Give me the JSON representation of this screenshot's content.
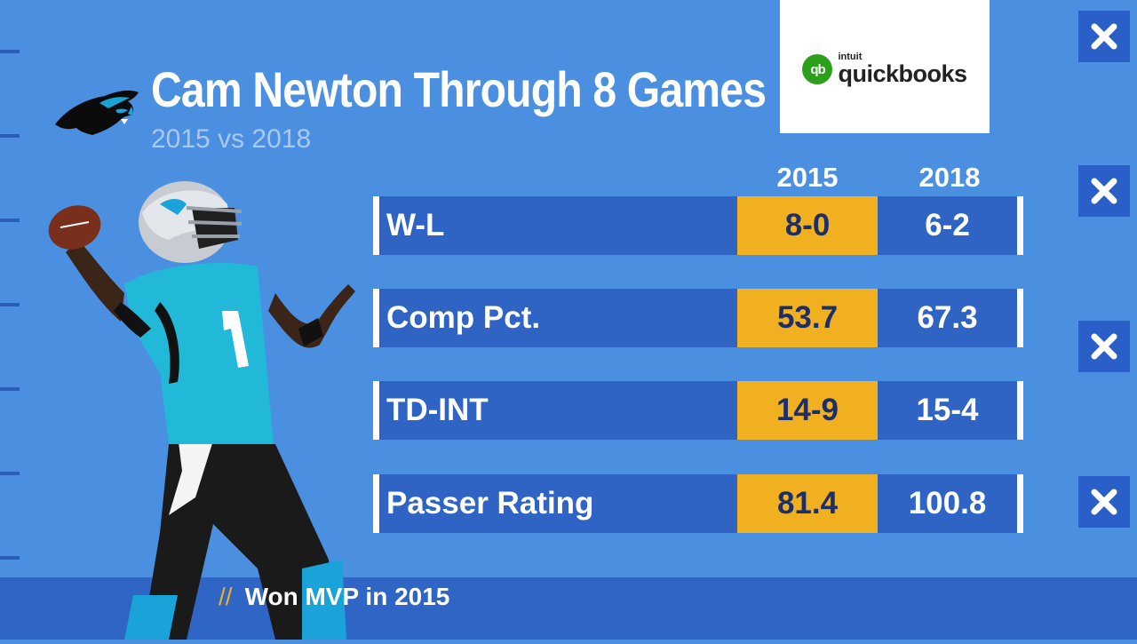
{
  "title": "Cam Newton Through 8 Games",
  "subtitle": "2015 vs 2018",
  "sponsor": {
    "brand_top": "intuit",
    "brand_name": "quickbooks",
    "mark": "qb"
  },
  "columns": [
    "2015",
    "2018"
  ],
  "rows": [
    {
      "label": "W-L",
      "v2015": "8-0",
      "v2018": "6-2"
    },
    {
      "label": "Comp Pct.",
      "v2015": "53.7",
      "v2018": "67.3"
    },
    {
      "label": "TD-INT",
      "v2015": "14-9",
      "v2018": "15-4"
    },
    {
      "label": "Passer Rating",
      "v2015": "81.4",
      "v2018": "100.8"
    }
  ],
  "note": {
    "prefix": "//",
    "text": "Won MVP in 2015"
  },
  "icons": {
    "team_logo": "panther-logo-icon",
    "close": "close-icon"
  },
  "colors": {
    "background": "#4a8fe0",
    "row_blue": "#2f64c4",
    "highlight_gold": "#f0b020",
    "highlight_text": "#1c2f6b",
    "qb_green": "#2ca01c"
  }
}
